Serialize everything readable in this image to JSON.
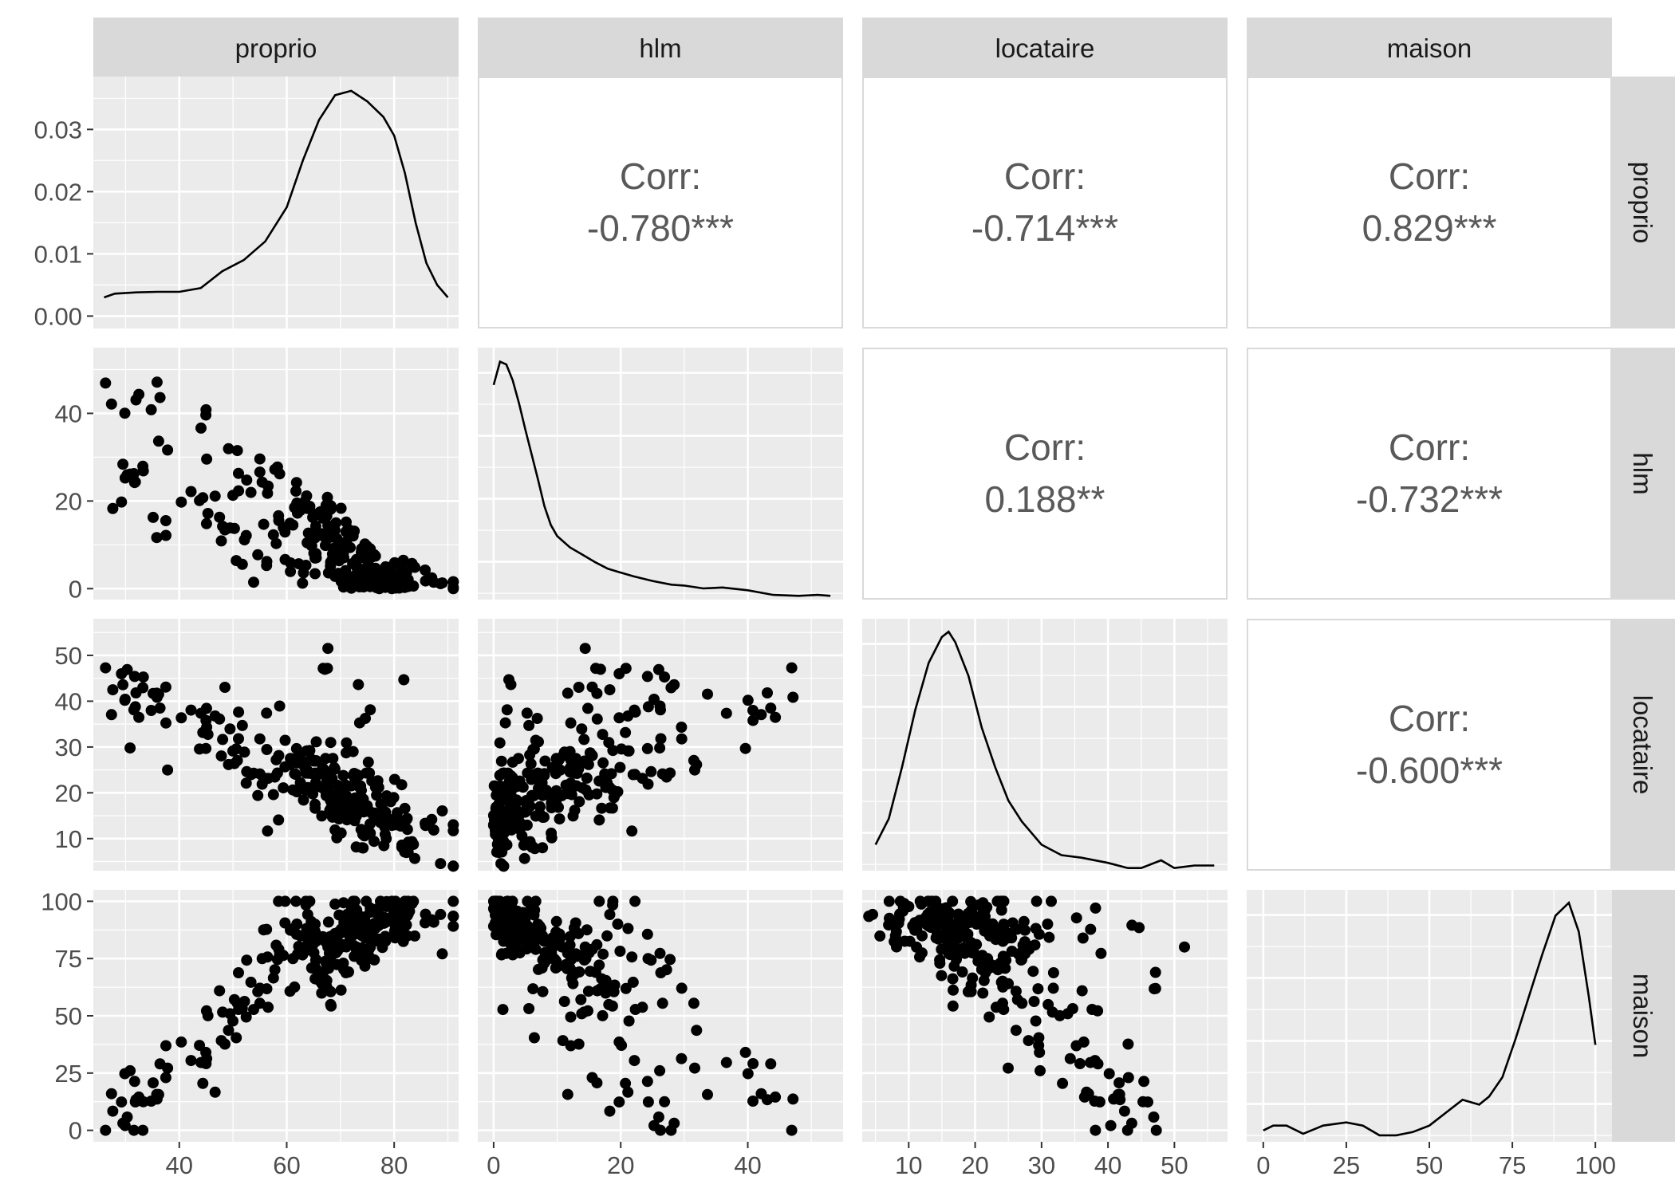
{
  "chart_data": {
    "type": "scatterplot-matrix",
    "variables": [
      "proprio",
      "hlm",
      "locataire",
      "maison"
    ],
    "correlations": [
      {
        "row": "proprio",
        "col": "hlm",
        "label": "Corr:",
        "value": "-0.780***"
      },
      {
        "row": "proprio",
        "col": "locataire",
        "label": "Corr:",
        "value": "-0.714***"
      },
      {
        "row": "proprio",
        "col": "maison",
        "label": "Corr:",
        "value": "0.829***"
      },
      {
        "row": "hlm",
        "col": "locataire",
        "label": "Corr:",
        "value": "0.188**"
      },
      {
        "row": "hlm",
        "col": "maison",
        "label": "Corr:",
        "value": "-0.732***"
      },
      {
        "row": "locataire",
        "col": "maison",
        "label": "Corr:",
        "value": "-0.600***"
      }
    ],
    "axes": {
      "proprio": {
        "range": [
          24,
          92
        ],
        "ticks": [
          40,
          60,
          80
        ],
        "tick_labels": [
          "40",
          "60",
          "80"
        ]
      },
      "hlm": {
        "range": [
          -2.5,
          55
        ],
        "ticks": [
          0,
          20,
          40
        ],
        "tick_labels": [
          "0",
          "20",
          "40"
        ]
      },
      "locataire": {
        "range": [
          3,
          58
        ],
        "ticks": [
          10,
          20,
          30,
          40,
          50
        ],
        "tick_labels": [
          "10",
          "20",
          "30",
          "40",
          "50"
        ]
      },
      "maison": {
        "range": [
          -5,
          105
        ],
        "ticks": [
          0,
          25,
          50,
          75,
          100
        ],
        "tick_labels": [
          "0",
          "25",
          "50",
          "75",
          "100"
        ]
      }
    },
    "density_axis": {
      "range": [
        -0.002,
        0.0385
      ],
      "ticks": [
        0.0,
        0.01,
        0.02,
        0.03
      ],
      "tick_labels": [
        "0.00",
        "0.01",
        "0.02",
        "0.03"
      ]
    },
    "densities": {
      "proprio": [
        [
          26,
          0.003
        ],
        [
          28,
          0.0036
        ],
        [
          32,
          0.0038
        ],
        [
          36,
          0.0039
        ],
        [
          40,
          0.0039
        ],
        [
          44,
          0.0045
        ],
        [
          48,
          0.0072
        ],
        [
          52,
          0.009
        ],
        [
          56,
          0.012
        ],
        [
          60,
          0.0175
        ],
        [
          63,
          0.025
        ],
        [
          66,
          0.0315
        ],
        [
          69,
          0.0355
        ],
        [
          72,
          0.0362
        ],
        [
          75,
          0.0345
        ],
        [
          78,
          0.032
        ],
        [
          80,
          0.029
        ],
        [
          82,
          0.023
        ],
        [
          84,
          0.015
        ],
        [
          86,
          0.0085
        ],
        [
          88,
          0.005
        ],
        [
          90,
          0.003
        ]
      ],
      "hlm": [
        [
          0,
          0.23
        ],
        [
          1,
          0.255
        ],
        [
          2,
          0.252
        ],
        [
          3,
          0.235
        ],
        [
          4,
          0.21
        ],
        [
          5,
          0.182
        ],
        [
          6,
          0.155
        ],
        [
          7,
          0.128
        ],
        [
          8,
          0.1
        ],
        [
          9,
          0.08
        ],
        [
          10,
          0.068
        ],
        [
          12,
          0.056
        ],
        [
          14,
          0.048
        ],
        [
          16,
          0.04
        ],
        [
          18,
          0.033
        ],
        [
          20,
          0.029
        ],
        [
          22,
          0.025
        ],
        [
          25,
          0.02
        ],
        [
          28,
          0.016
        ],
        [
          30,
          0.015
        ],
        [
          33,
          0.012
        ],
        [
          36,
          0.013
        ],
        [
          40,
          0.01
        ],
        [
          44,
          0.005
        ],
        [
          48,
          0.004
        ],
        [
          51,
          0.005
        ],
        [
          53,
          0.004
        ]
      ],
      "locataire": [
        [
          5,
          0.01
        ],
        [
          7,
          0.02
        ],
        [
          9,
          0.04
        ],
        [
          11,
          0.062
        ],
        [
          13,
          0.08
        ],
        [
          15,
          0.09
        ],
        [
          16,
          0.092
        ],
        [
          17,
          0.088
        ],
        [
          19,
          0.075
        ],
        [
          21,
          0.055
        ],
        [
          23,
          0.04
        ],
        [
          25,
          0.027
        ],
        [
          27,
          0.019
        ],
        [
          30,
          0.01
        ],
        [
          33,
          0.006
        ],
        [
          36,
          0.005
        ],
        [
          40,
          0.003
        ],
        [
          43,
          0.001
        ],
        [
          45,
          0.001
        ],
        [
          48,
          0.004
        ],
        [
          50,
          0.001
        ],
        [
          53,
          0.002
        ],
        [
          56,
          0.002
        ]
      ],
      "maison": [
        [
          0,
          0.0035
        ],
        [
          3,
          0.005
        ],
        [
          7,
          0.005
        ],
        [
          12,
          0.0025
        ],
        [
          18,
          0.005
        ],
        [
          25,
          0.006
        ],
        [
          30,
          0.005
        ],
        [
          35,
          0.002
        ],
        [
          40,
          0.002
        ],
        [
          45,
          0.003
        ],
        [
          50,
          0.005
        ],
        [
          55,
          0.009
        ],
        [
          60,
          0.013
        ],
        [
          65,
          0.0115
        ],
        [
          68,
          0.014
        ],
        [
          72,
          0.02
        ],
        [
          76,
          0.032
        ],
        [
          80,
          0.045
        ],
        [
          84,
          0.058
        ],
        [
          88,
          0.07
        ],
        [
          92,
          0.074
        ],
        [
          95,
          0.065
        ],
        [
          98,
          0.045
        ],
        [
          100,
          0.03
        ]
      ]
    },
    "density_ranges": {
      "hlm": [
        0,
        0.27
      ],
      "locataire": [
        0,
        0.097
      ],
      "maison": [
        0,
        0.078
      ]
    }
  }
}
